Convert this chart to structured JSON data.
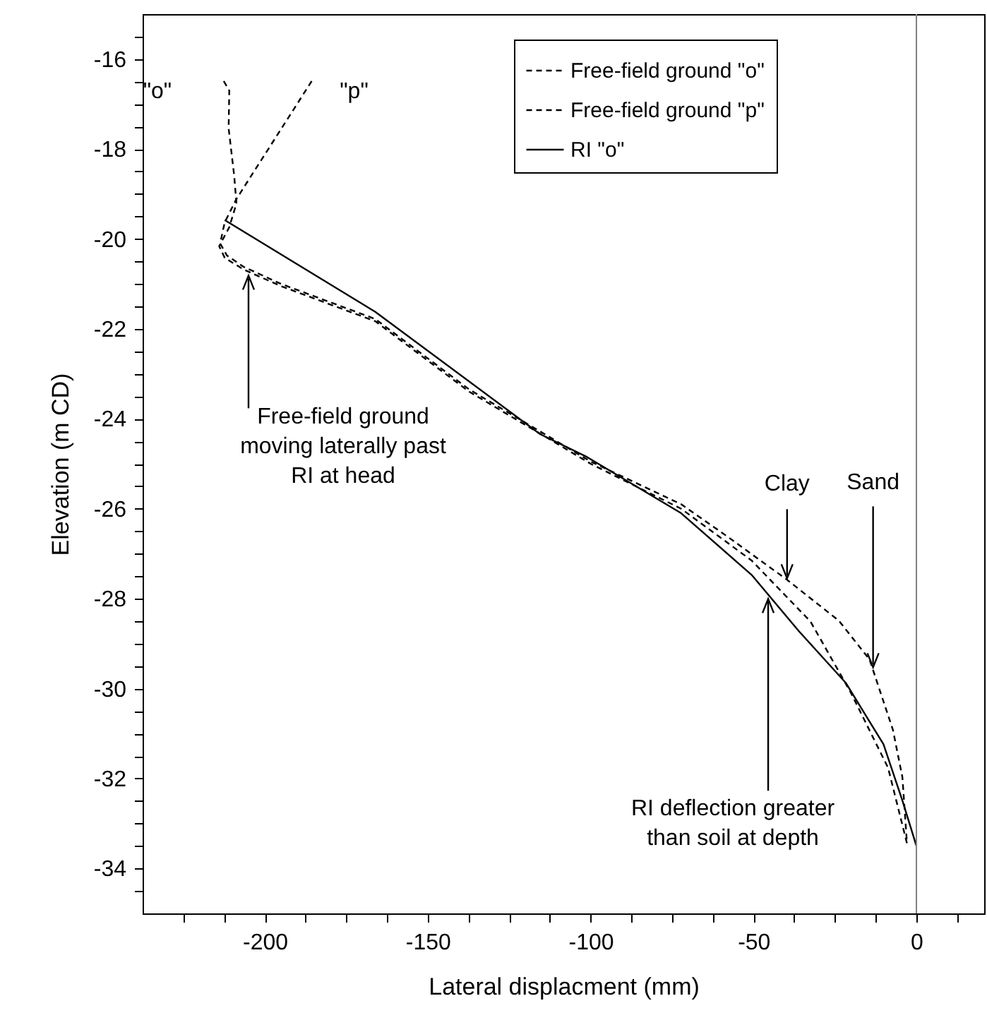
{
  "chart_data": {
    "type": "line",
    "xlabel": "Lateral displacment (mm)",
    "ylabel": "Elevation (m CD)",
    "xlim": [
      -237.5,
      20.8
    ],
    "ylim": [
      -35,
      -15
    ],
    "xticks": [
      {
        "value": -225,
        "label": null
      },
      {
        "value": -212.5,
        "label": null
      },
      -200,
      {
        "value": -187.5,
        "label": null
      },
      {
        "value": -175,
        "label": null
      },
      {
        "value": -162.5,
        "label": null
      },
      -150,
      {
        "value": -137.5,
        "label": null
      },
      {
        "value": -125,
        "label": null
      },
      {
        "value": -112.5,
        "label": null
      },
      -100,
      {
        "value": -87.5,
        "label": null
      },
      {
        "value": -75,
        "label": null
      },
      {
        "value": -62.5,
        "label": null
      },
      -50,
      {
        "value": -37.5,
        "label": null
      },
      {
        "value": -25,
        "label": null
      },
      {
        "value": -12.5,
        "label": null
      },
      0,
      {
        "value": 12.5,
        "label": null
      }
    ],
    "yticks": [
      {
        "value": -15.5,
        "label": null
      },
      -16,
      {
        "value": -16.5,
        "label": null
      },
      {
        "value": -17,
        "label": null
      },
      {
        "value": -17.5,
        "label": null
      },
      -18,
      {
        "value": -18.5,
        "label": null
      },
      {
        "value": -19,
        "label": null
      },
      {
        "value": -19.5,
        "label": null
      },
      -20,
      {
        "value": -20.5,
        "label": null
      },
      {
        "value": -21,
        "label": null
      },
      {
        "value": -21.5,
        "label": null
      },
      -22,
      {
        "value": -22.5,
        "label": null
      },
      {
        "value": -23,
        "label": null
      },
      {
        "value": -23.5,
        "label": null
      },
      -24,
      {
        "value": -24.5,
        "label": null
      },
      {
        "value": -25,
        "label": null
      },
      {
        "value": -25.5,
        "label": null
      },
      -26,
      {
        "value": -26.5,
        "label": null
      },
      {
        "value": -27,
        "label": null
      },
      {
        "value": -27.5,
        "label": null
      },
      -28,
      {
        "value": -28.5,
        "label": null
      },
      {
        "value": -29,
        "label": null
      },
      {
        "value": -29.5,
        "label": null
      },
      -30,
      {
        "value": -30.5,
        "label": null
      },
      {
        "value": -31,
        "label": null
      },
      {
        "value": -31.5,
        "label": null
      },
      -32,
      {
        "value": -32.5,
        "label": null
      },
      {
        "value": -33,
        "label": null
      },
      {
        "value": -33.5,
        "label": null
      },
      -34,
      {
        "value": -34.5,
        "label": null
      }
    ],
    "legend": "top right",
    "grid": false,
    "marker": "none",
    "series": [
      {
        "name": "Free-field ground \"o\"",
        "color": "#000000",
        "line_style": "dashed",
        "x": [
          -212.6,
          -210.9,
          -211.1,
          -209.4,
          -208.7,
          -210.9,
          -214.0,
          -212.3,
          -206.5,
          -195,
          -166.1,
          -137.2,
          -112.7,
          -100,
          -72.2,
          -50.6,
          -32.5,
          -20.2,
          -8.7,
          -2.9
        ],
        "values": [
          -16.49,
          -16.7,
          -17.54,
          -18.59,
          -19.21,
          -19.74,
          -20.16,
          -20.42,
          -20.68,
          -21.05,
          -21.83,
          -23.4,
          -24.45,
          -25.0,
          -26.0,
          -27.15,
          -28.51,
          -30.08,
          -31.76,
          -33.44
        ]
      },
      {
        "name": "Free-field ground \"p\"",
        "color": "#000000",
        "line_style": "dashed",
        "x": [
          -185.6,
          -208.7,
          -212.3,
          -213.7,
          -211.6,
          -206.5,
          -195,
          -166.1,
          -137.2,
          -112.7,
          -100,
          -72.2,
          -57.8,
          -39.7,
          -23.8,
          -14.4,
          -7.2,
          -4.3,
          -2.9
        ],
        "values": [
          -16.49,
          -19.11,
          -19.63,
          -20.1,
          -20.37,
          -20.62,
          -21.0,
          -21.78,
          -23.35,
          -24.4,
          -24.95,
          -25.9,
          -26.63,
          -27.58,
          -28.49,
          -29.35,
          -30.92,
          -31.97,
          -33.44
        ]
      },
      {
        "name": "RI \"o\"",
        "color": "#000000",
        "line_style": "solid",
        "x": [
          -212.3,
          -166.1,
          -115.5,
          -101.1,
          -72.2,
          -50.6,
          -36.1,
          -21.7,
          -10.1,
          -4.3,
          0
        ],
        "values": [
          -19.58,
          -21.62,
          -24.34,
          -24.85,
          -26.1,
          -27.47,
          -28.72,
          -29.87,
          -31.24,
          -32.49,
          -33.5
        ]
      }
    ],
    "ref_lines": [
      {
        "axis": "x",
        "value": 0,
        "color": "#808080"
      }
    ],
    "annotations": [
      {
        "text": "\"o\"",
        "x": -212.6,
        "y": -16.49
      },
      {
        "text": "\"p\"",
        "x": -185.6,
        "y": -16.49
      },
      {
        "text": "Free-field ground\nmoving laterally past\nRI at head",
        "x": -205,
        "y": -20.72
      },
      {
        "text": "Clay",
        "x": -39.7,
        "y": -27.58
      },
      {
        "text": "Sand",
        "x": -13.3,
        "y": -29.59
      },
      {
        "text": "RI deflection greater\nthan soil at depth",
        "x": -45.5,
        "y": -27.91
      }
    ]
  }
}
